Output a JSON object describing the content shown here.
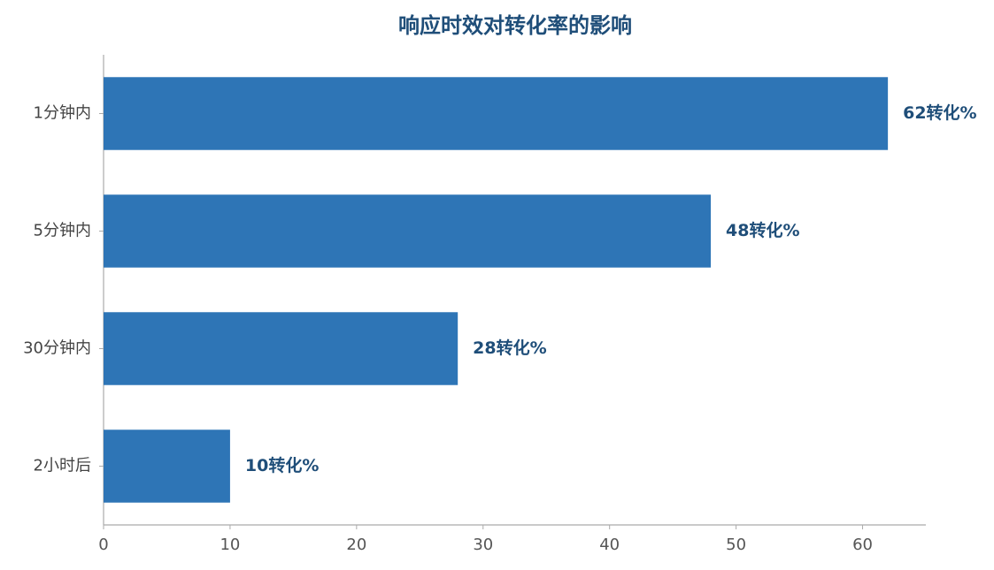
{
  "chart_data": {
    "type": "bar",
    "orientation": "horizontal",
    "title": "响应时效对转化率的影响",
    "categories": [
      "1分钟内",
      "5分钟内",
      "30分钟内",
      "2小时后"
    ],
    "values": [
      62,
      48,
      28,
      10
    ],
    "value_labels": [
      "62转化%",
      "48转化%",
      "28转化%",
      "10转化%"
    ],
    "color": "#2e75b6",
    "xlim": [
      0,
      65
    ],
    "xticks": [
      0,
      10,
      20,
      30,
      40,
      50,
      60
    ],
    "grid": false
  }
}
